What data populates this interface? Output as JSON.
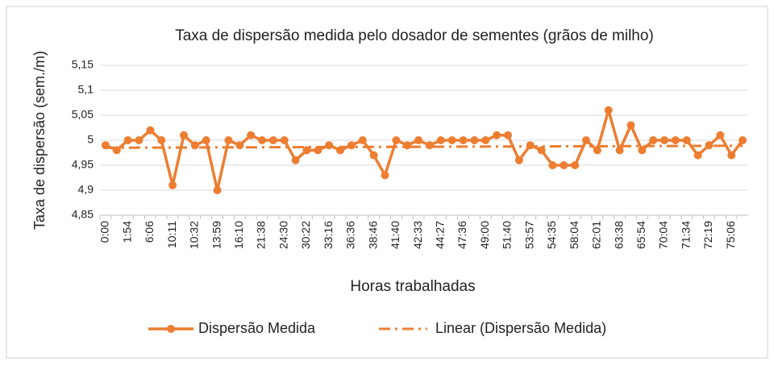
{
  "chart_data": {
    "type": "line",
    "title": "Taxa de dispersão medida pelo dosador de sementes (grãos de milho)",
    "x_label": "Horas trabalhadas",
    "y_label": "Taxa de dispersão (sem./m)",
    "categories": [
      "0:00",
      null,
      "1:54",
      null,
      "6:06",
      null,
      "10:11",
      null,
      "10:32",
      null,
      "13:59",
      null,
      "16:10",
      null,
      "21:38",
      null,
      "24:30",
      null,
      "30:22",
      null,
      "33:16",
      null,
      "36:36",
      null,
      "38:46",
      null,
      "41:40",
      null,
      "42:33",
      null,
      "44:27",
      null,
      "47:36",
      null,
      "49:00",
      null,
      "51:40",
      null,
      "53:57",
      null,
      "54:35",
      null,
      "58:04",
      null,
      "62:01",
      null,
      "63:38",
      null,
      "65:54",
      null,
      "70:04",
      null,
      "71:34",
      null,
      "72:19",
      null,
      "75:06",
      null
    ],
    "series": [
      {
        "name": "Dispersão Medida",
        "color": "#ed7d31",
        "values": [
          4.99,
          4.98,
          5.0,
          5.0,
          5.02,
          5.0,
          4.91,
          5.01,
          4.99,
          5.0,
          4.9,
          5.0,
          4.99,
          5.01,
          5.0,
          5.0,
          5.0,
          4.96,
          4.98,
          4.98,
          4.99,
          4.98,
          4.99,
          5.0,
          4.97,
          4.93,
          5.0,
          4.99,
          5.0,
          4.99,
          5.0,
          5.0,
          5.0,
          5.0,
          5.0,
          5.01,
          5.01,
          4.96,
          4.99,
          4.98,
          4.95,
          4.95,
          4.95,
          5.0,
          4.98,
          5.06,
          4.98,
          5.03,
          4.98,
          5.0,
          5.0,
          5.0,
          5.0,
          4.97,
          4.99,
          5.01,
          4.97,
          5.0
        ]
      }
    ],
    "trendline": {
      "name": "Linear (Dispersão Medida)",
      "color": "#ed7d31",
      "start": 4.985,
      "end": 4.989
    },
    "ylim": [
      4.85,
      5.15
    ],
    "yticks": [
      {
        "value": 4.85,
        "label": "4,85"
      },
      {
        "value": 4.9,
        "label": "4,9"
      },
      {
        "value": 4.95,
        "label": "4,95"
      },
      5,
      {
        "value": 5.05,
        "label": "5,05"
      },
      {
        "value": 5.1,
        "label": "5,1"
      },
      {
        "value": 5.15,
        "label": "5,15"
      }
    ],
    "grid": true,
    "legend": "bottom"
  }
}
